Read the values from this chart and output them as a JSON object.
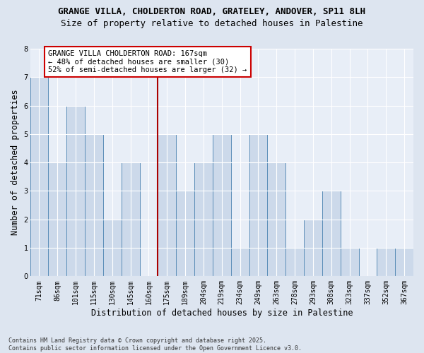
{
  "title1": "GRANGE VILLA, CHOLDERTON ROAD, GRATELEY, ANDOVER, SP11 8LH",
  "title2": "Size of property relative to detached houses in Palestine",
  "xlabel": "Distribution of detached houses by size in Palestine",
  "ylabel": "Number of detached properties",
  "categories": [
    "71sqm",
    "86sqm",
    "101sqm",
    "115sqm",
    "130sqm",
    "145sqm",
    "160sqm",
    "175sqm",
    "189sqm",
    "204sqm",
    "219sqm",
    "234sqm",
    "249sqm",
    "263sqm",
    "278sqm",
    "293sqm",
    "308sqm",
    "323sqm",
    "337sqm",
    "352sqm",
    "367sqm"
  ],
  "values": [
    7,
    4,
    6,
    5,
    2,
    4,
    0,
    5,
    3,
    4,
    5,
    1,
    5,
    4,
    1,
    2,
    3,
    1,
    0,
    1,
    1
  ],
  "bar_color": "#ccd9ea",
  "bar_edge_color": "#5b8db8",
  "vline_index": 6,
  "vline_color": "#aa0000",
  "annotation_text": "GRANGE VILLA CHOLDERTON ROAD: 167sqm\n← 48% of detached houses are smaller (30)\n52% of semi-detached houses are larger (32) →",
  "annotation_box_facecolor": "#ffffff",
  "annotation_box_edgecolor": "#cc0000",
  "ylim_max": 8,
  "yticks": [
    0,
    1,
    2,
    3,
    4,
    5,
    6,
    7,
    8
  ],
  "background_color": "#dde5f0",
  "plot_bg_color": "#e8eef7",
  "grid_color": "#ffffff",
  "footnote": "Contains HM Land Registry data © Crown copyright and database right 2025.\nContains public sector information licensed under the Open Government Licence v3.0.",
  "title_fontsize": 9,
  "subtitle_fontsize": 9,
  "axis_label_fontsize": 8.5,
  "tick_fontsize": 7,
  "annotation_fontsize": 7.5,
  "footnote_fontsize": 6
}
